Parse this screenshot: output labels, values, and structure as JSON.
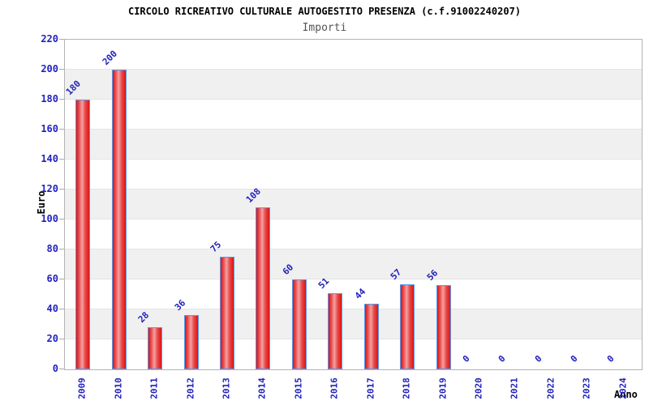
{
  "chart_data": {
    "type": "bar",
    "title": "CIRCOLO RICREATIVO CULTURALE AUTOGESTITO PRESENZA (c.f.91002240207)",
    "subtitle": "Importi",
    "xlabel": "Anno",
    "ylabel": "Euro",
    "categories": [
      "2009",
      "2010",
      "2011",
      "2012",
      "2013",
      "2014",
      "2015",
      "2016",
      "2017",
      "2018",
      "2019",
      "2020",
      "2021",
      "2022",
      "2023",
      "2024"
    ],
    "values": [
      180,
      200,
      28,
      36,
      75,
      108,
      60,
      51,
      44,
      57,
      56,
      0,
      0,
      0,
      0,
      0
    ],
    "ylim": [
      0,
      220
    ],
    "ytick_step": 20,
    "ytick_labels": [
      "0",
      "20",
      "40",
      "60",
      "80",
      "100",
      "120",
      "140",
      "160",
      "180",
      "200",
      "220"
    ],
    "grid": "horizontal-alternating-bands",
    "legend": "none",
    "colors": {
      "bar_edge": "#dd1414",
      "bar_center": "#f4a0a0",
      "bar_border": "#5599ee",
      "axis_label_blue": "#2222bb",
      "value_label_blue": "#2222bb",
      "band_gray": "#f0f0f0",
      "gridline": "#e4e4e4",
      "frame_border": "#b4b4b4",
      "tick_mark": "#aaaaaa",
      "title_color": "#000000",
      "subtitle_color": "#555555"
    }
  }
}
